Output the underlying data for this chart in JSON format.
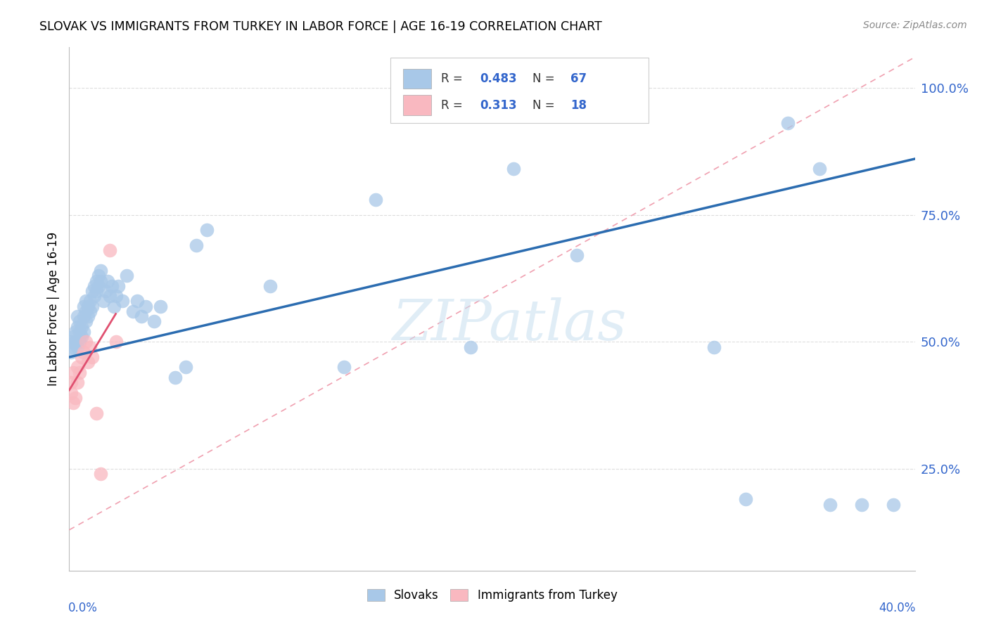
{
  "title": "SLOVAK VS IMMIGRANTS FROM TURKEY IN LABOR FORCE | AGE 16-19 CORRELATION CHART",
  "source": "Source: ZipAtlas.com",
  "ylabel": "In Labor Force | Age 16-19",
  "xlim": [
    0.0,
    0.4
  ],
  "ylim": [
    0.05,
    1.08
  ],
  "blue_color": "#a8c8e8",
  "blue_line_color": "#2b6cb0",
  "pink_color": "#f9b8c0",
  "pink_line_color": "#e05070",
  "dashed_line_color": "#f0a0b0",
  "grid_color": "#dddddd",
  "R_blue": "0.483",
  "N_blue": "67",
  "R_pink": "0.313",
  "N_pink": "18",
  "blue_x": [
    0.001,
    0.001,
    0.002,
    0.002,
    0.003,
    0.003,
    0.004,
    0.004,
    0.004,
    0.005,
    0.005,
    0.005,
    0.006,
    0.006,
    0.007,
    0.007,
    0.007,
    0.008,
    0.008,
    0.008,
    0.009,
    0.009,
    0.01,
    0.01,
    0.011,
    0.011,
    0.012,
    0.012,
    0.013,
    0.013,
    0.014,
    0.014,
    0.015,
    0.015,
    0.016,
    0.017,
    0.018,
    0.019,
    0.02,
    0.021,
    0.022,
    0.023,
    0.025,
    0.027,
    0.03,
    0.032,
    0.034,
    0.036,
    0.04,
    0.043,
    0.05,
    0.055,
    0.06,
    0.065,
    0.095,
    0.13,
    0.145,
    0.19,
    0.21,
    0.24,
    0.305,
    0.32,
    0.34,
    0.355,
    0.36,
    0.375,
    0.39
  ],
  "blue_y": [
    0.48,
    0.5,
    0.49,
    0.51,
    0.5,
    0.52,
    0.49,
    0.53,
    0.55,
    0.5,
    0.52,
    0.54,
    0.51,
    0.53,
    0.52,
    0.55,
    0.57,
    0.54,
    0.56,
    0.58,
    0.55,
    0.57,
    0.56,
    0.58,
    0.57,
    0.6,
    0.59,
    0.61,
    0.6,
    0.62,
    0.61,
    0.63,
    0.62,
    0.64,
    0.58,
    0.6,
    0.62,
    0.59,
    0.61,
    0.57,
    0.59,
    0.61,
    0.58,
    0.63,
    0.56,
    0.58,
    0.55,
    0.57,
    0.54,
    0.57,
    0.43,
    0.45,
    0.69,
    0.72,
    0.61,
    0.45,
    0.78,
    0.49,
    0.84,
    0.67,
    0.49,
    0.19,
    0.93,
    0.84,
    0.18,
    0.18,
    0.18
  ],
  "pink_x": [
    0.001,
    0.001,
    0.002,
    0.002,
    0.003,
    0.004,
    0.004,
    0.005,
    0.006,
    0.007,
    0.008,
    0.009,
    0.01,
    0.011,
    0.013,
    0.015,
    0.019,
    0.022
  ],
  "pink_y": [
    0.42,
    0.4,
    0.44,
    0.38,
    0.39,
    0.42,
    0.45,
    0.44,
    0.47,
    0.48,
    0.5,
    0.46,
    0.49,
    0.47,
    0.36,
    0.24,
    0.68,
    0.5
  ],
  "blue_line_x": [
    0.0,
    0.4
  ],
  "blue_line_y": [
    0.47,
    0.86
  ],
  "pink_line_x": [
    0.0,
    0.022
  ],
  "pink_line_y": [
    0.405,
    0.555
  ],
  "dash_line_x": [
    0.0,
    0.4
  ],
  "dash_line_y": [
    0.13,
    1.06
  ]
}
